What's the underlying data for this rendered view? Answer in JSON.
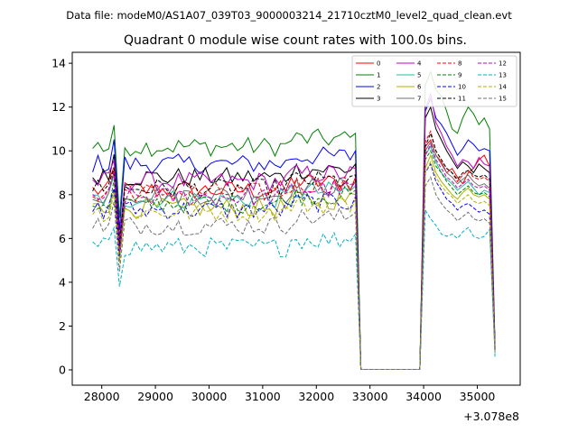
{
  "suptitle": "Data file: modeM0/AS1A07_039T03_9000003214_21710cztM0_level2_quad_clean.evt",
  "chart_data": {
    "type": "line",
    "title": "Quadrant 0 module wise count rates with 100.0s bins.",
    "xlabel": "",
    "ylabel": "",
    "x_offset_label": "+3.078e8",
    "xlim": [
      27450,
      35800
    ],
    "ylim": [
      -0.7,
      14.5
    ],
    "x_ticks": [
      28000,
      29000,
      30000,
      31000,
      32000,
      33000,
      34000,
      35000
    ],
    "x_tick_labels": [
      "28000",
      "29000",
      "30000",
      "31000",
      "32000",
      "33000",
      "34000",
      "35000"
    ],
    "y_ticks": [
      0,
      2,
      4,
      6,
      8,
      10,
      12,
      14
    ],
    "y_tick_labels": [
      "0",
      "2",
      "4",
      "6",
      "8",
      "10",
      "12",
      "14"
    ],
    "grid": false,
    "legend_position": "top-right",
    "segments": [
      {
        "x_start": 27830,
        "x_end": 32730,
        "n": 50
      },
      {
        "x_start": 32830,
        "x_end": 33930,
        "n": 12
      },
      {
        "x_start": 34030,
        "x_end": 35330,
        "n": 14
      }
    ],
    "series": [
      {
        "name": "0",
        "color": "#ff0000",
        "dash": "solid",
        "level": 8.2,
        "seg3": [
          10.2,
          10.5,
          9.8,
          9.5,
          9.0,
          9.2,
          8.8,
          8.5,
          9.0,
          9.2,
          9.6,
          9.8,
          9.3,
          1.0
        ]
      },
      {
        "name": "1",
        "color": "#008000",
        "dash": "solid",
        "level": 10.2,
        "seg3": [
          13.0,
          13.6,
          12.8,
          12.5,
          11.8,
          11.0,
          10.8,
          11.5,
          12.0,
          11.7,
          11.2,
          11.5,
          11.0,
          1.2
        ]
      },
      {
        "name": "2",
        "color": "#0000ff",
        "dash": "solid",
        "level": 9.4,
        "seg3": [
          11.8,
          12.4,
          11.5,
          11.2,
          10.8,
          10.3,
          9.8,
          10.1,
          10.5,
          10.3,
          10.0,
          10.1,
          10.0,
          1.1
        ]
      },
      {
        "name": "3",
        "color": "#000000",
        "dash": "solid",
        "level": 8.8,
        "seg3": [
          11.5,
          12.0,
          11.0,
          10.5,
          10.0,
          9.6,
          9.2,
          9.5,
          9.3,
          9.0,
          9.4,
          9.2,
          9.0,
          1.0
        ]
      },
      {
        "name": "4",
        "color": "#c000c0",
        "dash": "solid",
        "level": 8.6,
        "seg3": [
          11.9,
          12.6,
          11.3,
          10.8,
          10.2,
          9.8,
          9.3,
          9.6,
          9.5,
          9.2,
          9.7,
          9.4,
          9.3,
          1.0
        ]
      },
      {
        "name": "5",
        "color": "#20c0a0",
        "dash": "solid",
        "level": 7.8,
        "seg3": [
          9.8,
          10.2,
          9.5,
          9.0,
          8.7,
          8.5,
          8.2,
          8.4,
          8.6,
          8.3,
          8.0,
          8.2,
          8.1,
          0.9
        ]
      },
      {
        "name": "6",
        "color": "#b0b000",
        "dash": "solid",
        "level": 7.4,
        "seg3": [
          9.2,
          9.8,
          9.0,
          8.6,
          8.3,
          8.0,
          7.8,
          8.1,
          8.3,
          8.0,
          7.9,
          8.0,
          7.8,
          0.9
        ]
      },
      {
        "name": "7",
        "color": "#707070",
        "dash": "solid",
        "level": 8.0,
        "seg3": [
          10.0,
          10.4,
          9.8,
          9.4,
          9.0,
          8.8,
          8.5,
          8.7,
          8.9,
          8.6,
          8.4,
          8.5,
          8.3,
          0.9
        ]
      },
      {
        "name": "8",
        "color": "#ff0000",
        "dash": "dashed",
        "level": 8.1,
        "seg3": [
          10.4,
          10.9,
          10.0,
          9.6,
          9.2,
          9.0,
          8.6,
          8.9,
          9.1,
          8.8,
          8.7,
          8.8,
          8.6,
          0.9
        ]
      },
      {
        "name": "9",
        "color": "#008000",
        "dash": "dashed",
        "level": 7.6,
        "seg3": [
          9.6,
          10.0,
          9.3,
          9.0,
          8.6,
          8.3,
          8.0,
          8.2,
          8.4,
          8.1,
          8.0,
          8.1,
          7.9,
          0.9
        ]
      },
      {
        "name": "10",
        "color": "#0000ff",
        "dash": "dashed",
        "level": 7.3,
        "seg3": [
          9.0,
          9.4,
          8.6,
          8.2,
          7.8,
          7.6,
          7.3,
          7.5,
          7.6,
          7.4,
          7.2,
          7.3,
          7.1,
          0.8
        ]
      },
      {
        "name": "11",
        "color": "#000000",
        "dash": "dashed",
        "level": 8.3,
        "seg3": [
          10.2,
          10.8,
          10.0,
          9.6,
          9.2,
          9.0,
          8.7,
          9.0,
          9.1,
          8.9,
          8.8,
          8.9,
          8.7,
          0.9
        ]
      },
      {
        "name": "12",
        "color": "#c000c0",
        "dash": "dashed",
        "level": 7.9,
        "seg3": [
          9.8,
          10.3,
          9.6,
          9.2,
          8.8,
          8.6,
          8.3,
          8.5,
          8.7,
          8.4,
          8.3,
          8.4,
          8.2,
          0.9
        ]
      },
      {
        "name": "13",
        "color": "#00b0c0",
        "dash": "dashed",
        "level": 5.6,
        "seg3": [
          7.3,
          6.9,
          6.6,
          6.2,
          6.1,
          6.2,
          6.0,
          6.3,
          6.5,
          6.1,
          6.0,
          6.1,
          6.4,
          0.6
        ]
      },
      {
        "name": "14",
        "color": "#b0b000",
        "dash": "dashed",
        "level": 7.2,
        "seg3": [
          9.0,
          9.5,
          8.8,
          8.4,
          8.1,
          7.9,
          7.6,
          7.8,
          8.0,
          7.7,
          7.6,
          7.7,
          7.5,
          0.8
        ]
      },
      {
        "name": "15",
        "color": "#707070",
        "dash": "dashed",
        "level": 6.6,
        "seg3": [
          8.4,
          8.8,
          8.0,
          7.6,
          7.3,
          7.1,
          6.8,
          7.0,
          7.2,
          6.9,
          6.8,
          6.9,
          6.7,
          0.8
        ]
      }
    ]
  }
}
